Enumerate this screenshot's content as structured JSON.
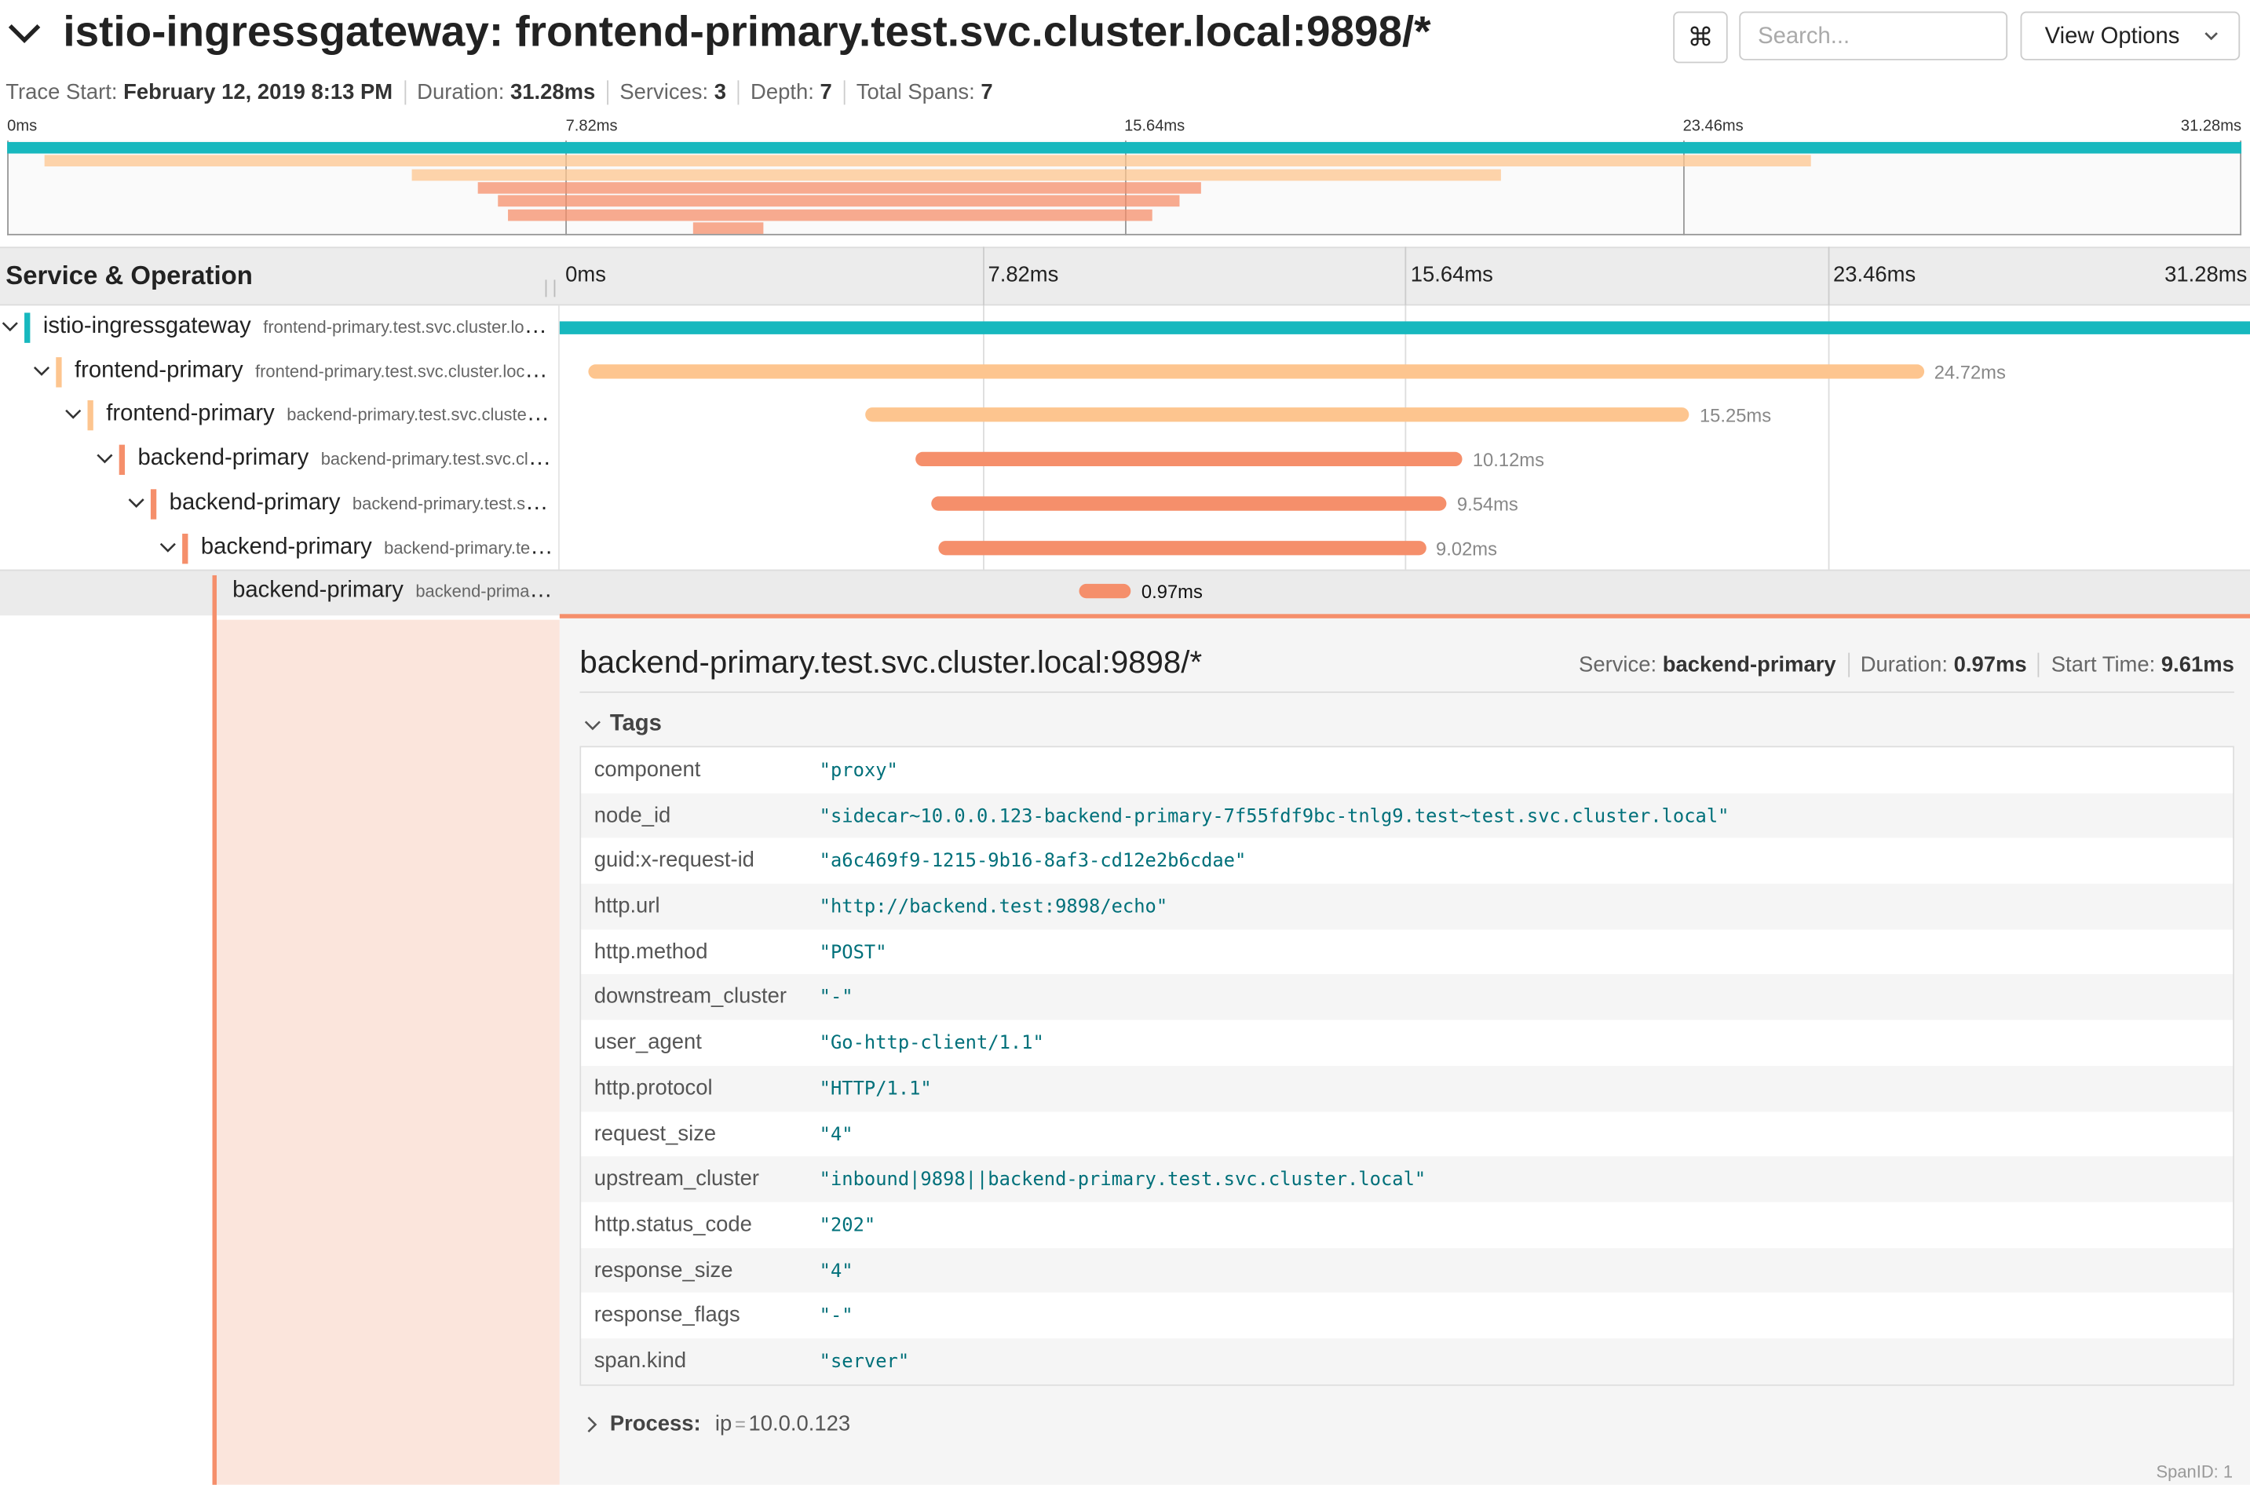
{
  "header": {
    "title": "istio-ingressgateway: frontend-primary.test.svc.cluster.local:9898/*",
    "shortcut_icon": "⌘",
    "search_placeholder": "Search...",
    "view_options": "View Options"
  },
  "meta": [
    {
      "label": "Trace Start:",
      "value": "February 12, 2019 8:13 PM"
    },
    {
      "label": "Duration:",
      "value": "31.28ms"
    },
    {
      "label": "Services:",
      "value": "3"
    },
    {
      "label": "Depth:",
      "value": "7"
    },
    {
      "label": "Total Spans:",
      "value": "7"
    }
  ],
  "timeline": {
    "column_title": "Service & Operation",
    "range": [
      0,
      31.28
    ],
    "ticks": [
      {
        "value": 0,
        "label": "0ms"
      },
      {
        "value": 7.82,
        "label": "7.82ms"
      },
      {
        "value": 15.64,
        "label": "15.64ms"
      },
      {
        "value": 23.46,
        "label": "23.46ms"
      },
      {
        "value": 31.28,
        "label": "31.28ms"
      }
    ]
  },
  "spans": [
    {
      "service": "istio-ingressgateway",
      "operation": "frontend-primary.test.svc.cluster.local:9898/*",
      "color": "#17b8be",
      "start": 0,
      "duration": 31.28
    },
    {
      "service": "frontend-primary",
      "operation": "frontend-primary.test.svc.cluster.local:9898/*",
      "color": "#fdc58f",
      "start": 0.53,
      "duration": 24.72,
      "duration_label": "24.72ms"
    },
    {
      "service": "frontend-primary",
      "operation": "backend-primary.test.svc.cluster.local:9898/*",
      "color": "#fdc58f",
      "start": 5.66,
      "duration": 15.25,
      "duration_label": "15.25ms"
    },
    {
      "service": "backend-primary",
      "operation": "backend-primary.test.svc.cluster.local:9898/*",
      "color": "#f58f6b",
      "start": 6.59,
      "duration": 10.12,
      "duration_label": "10.12ms"
    },
    {
      "service": "backend-primary",
      "operation": "backend-primary.test.svc.cluster.local:9898/*",
      "color": "#f58f6b",
      "start": 6.88,
      "duration": 9.54,
      "duration_label": "9.54ms"
    },
    {
      "service": "backend-primary",
      "operation": "backend-primary.test.svc.cluster.local:9898/*",
      "color": "#f58f6b",
      "start": 7.01,
      "duration": 9.02,
      "duration_label": "9.02ms"
    },
    {
      "service": "backend-primary",
      "operation": "backend-primary.test.svc.cluster.local:9898/*",
      "color": "#f58f6b",
      "start": 9.61,
      "duration": 0.97,
      "duration_label": "0.97ms"
    }
  ],
  "detail": {
    "title": "backend-primary.test.svc.cluster.local:9898/*",
    "meta": [
      {
        "label": "Service:",
        "value": "backend-primary"
      },
      {
        "label": "Duration:",
        "value": "0.97ms"
      },
      {
        "label": "Start Time:",
        "value": "9.61ms"
      }
    ],
    "tags_title": "Tags",
    "tags": [
      {
        "key": "component",
        "value": "\"proxy\""
      },
      {
        "key": "node_id",
        "value": "\"sidecar~10.0.0.123-backend-primary-7f55fdf9bc-tnlg9.test~test.svc.cluster.local\""
      },
      {
        "key": "guid:x-request-id",
        "value": "\"a6c469f9-1215-9b16-8af3-cd12e2b6cdae\""
      },
      {
        "key": "http.url",
        "value": "\"http://backend.test:9898/echo\""
      },
      {
        "key": "http.method",
        "value": "\"POST\""
      },
      {
        "key": "downstream_cluster",
        "value": "\"-\""
      },
      {
        "key": "user_agent",
        "value": "\"Go-http-client/1.1\""
      },
      {
        "key": "http.protocol",
        "value": "\"HTTP/1.1\""
      },
      {
        "key": "request_size",
        "value": "\"4\""
      },
      {
        "key": "upstream_cluster",
        "value": "\"inbound|9898||backend-primary.test.svc.cluster.local\""
      },
      {
        "key": "http.status_code",
        "value": "\"202\""
      },
      {
        "key": "response_size",
        "value": "\"4\""
      },
      {
        "key": "response_flags",
        "value": "\"-\""
      },
      {
        "key": "span.kind",
        "value": "\"server\""
      }
    ],
    "process": {
      "label": "Process:",
      "tags": [
        {
          "key": "ip",
          "sep": "=",
          "value": "10.0.0.123"
        }
      ]
    },
    "span_id": "SpanID: 1"
  }
}
